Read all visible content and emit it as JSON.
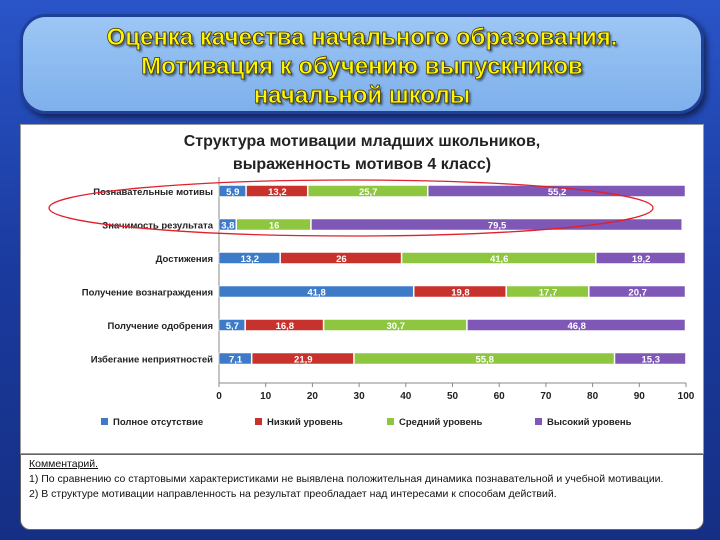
{
  "slide": {
    "title_lines": [
      "Оценка качества начального образования.",
      "Мотивация к обучению выпускников",
      "начальной школы"
    ]
  },
  "comment": {
    "heading": "Комментарий.",
    "items": [
      "1) По сравнению со стартовыми характеристиками не выявлена положительная динамика познавательной и учебной мотивации.",
      "2) В структуре мотивации направленность на результат преобладает над интересами к способам действий."
    ]
  },
  "chart_data": {
    "type": "bar",
    "orientation": "horizontal",
    "stacked": true,
    "title": "Структура мотивации младших школьников, выраженность мотивов 4 класс)",
    "title_lines": [
      "Структура мотивации младших школьников,",
      "выраженность мотивов 4 класс)"
    ],
    "categories": [
      "Познавательные мотивы",
      "Значимость результата",
      "Достижения",
      "Получение вознаграждения",
      "Получение одобрения",
      "Избегание неприятностей"
    ],
    "series": [
      {
        "name": "Полное отсутствие",
        "color": "#3d7bc9",
        "values": [
          5.9,
          3.8,
          13.2,
          41.8,
          5.7,
          7.1
        ],
        "labels": [
          "5,9",
          "3,8",
          "13,2",
          "41,8",
          "5,7",
          "7,1"
        ]
      },
      {
        "name": "Низкий уровень",
        "color": "#c8322d",
        "values": [
          13.2,
          0.0,
          26,
          19.8,
          16.8,
          21.9
        ],
        "labels": [
          "13,2",
          "",
          "26",
          "19,8",
          "16,8",
          "21,9"
        ]
      },
      {
        "name": "Средний уровень",
        "color": "#8ec63f",
        "values": [
          25.7,
          16,
          41.6,
          17.7,
          30.7,
          55.8
        ],
        "labels": [
          "25,7",
          "16",
          "41,6",
          "17,7",
          "30,7",
          "55,8"
        ]
      },
      {
        "name": "Высокий уровень",
        "color": "#7e57b7",
        "values": [
          55.2,
          79.5,
          19.2,
          20.7,
          46.8,
          15.3
        ],
        "labels": [
          "55,2",
          "79,5",
          "19,2",
          "20,7",
          "46,8",
          "15,3"
        ]
      }
    ],
    "x_ticks": [
      0,
      10,
      20,
      30,
      40,
      50,
      60,
      70,
      80,
      90,
      100
    ],
    "xlim": [
      0,
      100
    ],
    "grid": false,
    "legend_position": "bottom",
    "highlight": {
      "shape": "ellipse",
      "color": "#e0202a",
      "around_categories": [
        "Познавательные мотивы",
        "Значимость результата"
      ]
    }
  }
}
